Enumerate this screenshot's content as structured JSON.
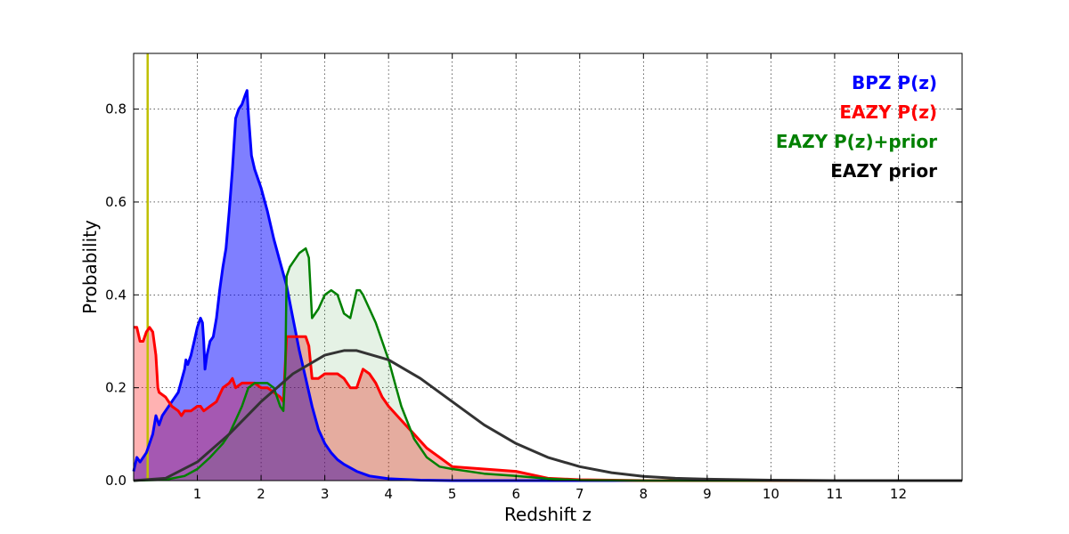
{
  "chart_data": {
    "type": "area",
    "title": "",
    "xlabel": "Redshift z",
    "ylabel": "Probability",
    "xlim": [
      0,
      13
    ],
    "ylim": [
      0,
      0.92
    ],
    "xticks": [
      1,
      2,
      3,
      4,
      5,
      6,
      7,
      8,
      9,
      10,
      11,
      12
    ],
    "xtick_labels": [
      "1",
      "2",
      "3",
      "4",
      "5",
      "6",
      "7",
      "8",
      "9",
      "10",
      "11",
      "12"
    ],
    "yticks": [
      0.0,
      0.2,
      0.4,
      0.6,
      0.8
    ],
    "ytick_labels": [
      "0.0",
      "0.2",
      "0.4",
      "0.6",
      "0.8"
    ],
    "grid": true,
    "legend_position": "top-right",
    "vertical_line": {
      "x": 0.22,
      "color": "#bfbf00"
    },
    "series": [
      {
        "name": "BPZ P(z)",
        "color": "#0000ff",
        "fill_color": "#0000ff",
        "fill_opacity": 0.5,
        "line_width": 3,
        "x": [
          0,
          0.05,
          0.1,
          0.2,
          0.3,
          0.35,
          0.4,
          0.45,
          0.5,
          0.6,
          0.7,
          0.8,
          0.82,
          0.85,
          0.9,
          0.95,
          1.0,
          1.05,
          1.08,
          1.1,
          1.12,
          1.15,
          1.2,
          1.25,
          1.3,
          1.35,
          1.4,
          1.45,
          1.5,
          1.55,
          1.6,
          1.65,
          1.7,
          1.75,
          1.78,
          1.8,
          1.85,
          1.9,
          2.0,
          2.1,
          2.2,
          2.3,
          2.4,
          2.5,
          2.6,
          2.7,
          2.8,
          2.9,
          3.0,
          3.1,
          3.2,
          3.3,
          3.5,
          3.7,
          4.0,
          4.5,
          5.0,
          13.0
        ],
        "y": [
          0.02,
          0.05,
          0.04,
          0.06,
          0.1,
          0.14,
          0.12,
          0.14,
          0.15,
          0.17,
          0.19,
          0.24,
          0.26,
          0.25,
          0.27,
          0.3,
          0.33,
          0.35,
          0.34,
          0.3,
          0.24,
          0.27,
          0.3,
          0.31,
          0.35,
          0.41,
          0.46,
          0.5,
          0.58,
          0.67,
          0.78,
          0.8,
          0.81,
          0.83,
          0.84,
          0.79,
          0.7,
          0.67,
          0.63,
          0.58,
          0.52,
          0.47,
          0.42,
          0.35,
          0.28,
          0.22,
          0.16,
          0.11,
          0.08,
          0.06,
          0.045,
          0.035,
          0.02,
          0.01,
          0.004,
          0.001,
          0.0,
          0.0
        ]
      },
      {
        "name": "EAZY P(z)",
        "color": "#ff0000",
        "fill_color": "#ff0000",
        "fill_opacity": 0.3,
        "line_width": 3,
        "x": [
          0,
          0.05,
          0.1,
          0.15,
          0.2,
          0.25,
          0.3,
          0.35,
          0.38,
          0.4,
          0.5,
          0.6,
          0.7,
          0.75,
          0.8,
          0.9,
          1.0,
          1.05,
          1.1,
          1.2,
          1.3,
          1.4,
          1.5,
          1.55,
          1.6,
          1.7,
          1.8,
          1.9,
          2.0,
          2.1,
          2.2,
          2.3,
          2.35,
          2.4,
          2.5,
          2.6,
          2.7,
          2.75,
          2.8,
          2.9,
          3.0,
          3.1,
          3.2,
          3.3,
          3.4,
          3.5,
          3.6,
          3.7,
          3.8,
          3.9,
          4.0,
          4.2,
          4.4,
          4.6,
          4.8,
          5.0,
          5.5,
          6.0,
          6.5,
          7.0,
          8.0,
          10.0,
          13.0
        ],
        "y": [
          0.33,
          0.33,
          0.3,
          0.3,
          0.32,
          0.33,
          0.32,
          0.27,
          0.2,
          0.19,
          0.18,
          0.16,
          0.15,
          0.14,
          0.15,
          0.15,
          0.16,
          0.16,
          0.15,
          0.16,
          0.17,
          0.2,
          0.21,
          0.22,
          0.2,
          0.21,
          0.21,
          0.21,
          0.2,
          0.2,
          0.19,
          0.18,
          0.17,
          0.31,
          0.31,
          0.31,
          0.31,
          0.29,
          0.22,
          0.22,
          0.23,
          0.23,
          0.23,
          0.22,
          0.2,
          0.2,
          0.24,
          0.23,
          0.21,
          0.18,
          0.16,
          0.13,
          0.1,
          0.07,
          0.05,
          0.03,
          0.025,
          0.02,
          0.005,
          0.002,
          0.0,
          0.0,
          0.0
        ]
      },
      {
        "name": "EAZY P(z)+prior",
        "color": "#008000",
        "fill_color": "#008000",
        "fill_opacity": 0.1,
        "line_width": 2.5,
        "x": [
          0,
          0.5,
          0.8,
          1.0,
          1.2,
          1.4,
          1.5,
          1.6,
          1.7,
          1.8,
          1.9,
          2.0,
          2.1,
          2.2,
          2.3,
          2.35,
          2.38,
          2.4,
          2.45,
          2.5,
          2.6,
          2.7,
          2.75,
          2.8,
          2.9,
          3.0,
          3.1,
          3.2,
          3.3,
          3.4,
          3.5,
          3.55,
          3.6,
          3.7,
          3.8,
          3.9,
          4.0,
          4.1,
          4.2,
          4.4,
          4.6,
          4.8,
          5.0,
          5.5,
          6.0,
          6.5,
          7.0,
          8.0,
          10.0,
          13.0
        ],
        "y": [
          0.0,
          0.002,
          0.01,
          0.025,
          0.05,
          0.08,
          0.1,
          0.13,
          0.16,
          0.2,
          0.21,
          0.21,
          0.21,
          0.2,
          0.16,
          0.15,
          0.24,
          0.44,
          0.46,
          0.47,
          0.49,
          0.5,
          0.48,
          0.35,
          0.37,
          0.4,
          0.41,
          0.4,
          0.36,
          0.35,
          0.41,
          0.41,
          0.4,
          0.37,
          0.34,
          0.3,
          0.26,
          0.21,
          0.16,
          0.09,
          0.05,
          0.03,
          0.025,
          0.015,
          0.01,
          0.004,
          0.001,
          0.0,
          0.0,
          0.0
        ]
      },
      {
        "name": "EAZY prior",
        "color": "#333333",
        "fill_color": "none",
        "fill_opacity": 0,
        "line_width": 3,
        "x": [
          0,
          0.5,
          1.0,
          1.5,
          2.0,
          2.5,
          3.0,
          3.3,
          3.5,
          4.0,
          4.5,
          5.0,
          5.5,
          6.0,
          6.5,
          7.0,
          7.5,
          8.0,
          8.5,
          9.0,
          10.0,
          11.0,
          12.0,
          13.0
        ],
        "y": [
          0.0,
          0.005,
          0.04,
          0.1,
          0.17,
          0.23,
          0.27,
          0.28,
          0.28,
          0.26,
          0.22,
          0.17,
          0.12,
          0.08,
          0.05,
          0.03,
          0.017,
          0.009,
          0.005,
          0.003,
          0.001,
          0.0,
          0.0,
          0.0
        ]
      }
    ]
  }
}
